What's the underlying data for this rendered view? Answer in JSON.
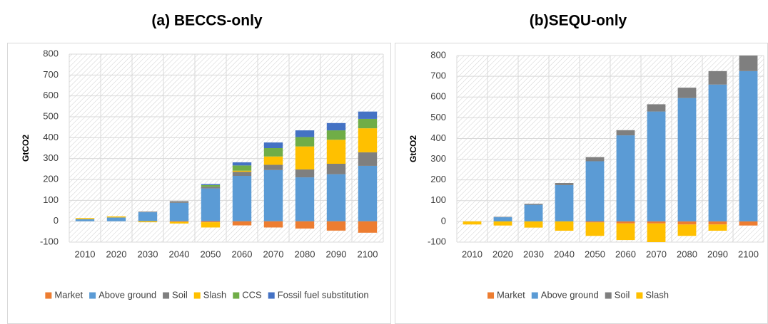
{
  "chart_data": [
    {
      "type": "bar",
      "stacked": true,
      "title": "(a) BECCS-only",
      "y_label": "GtCO2",
      "categories": [
        "2010",
        "2020",
        "2030",
        "2040",
        "2050",
        "2060",
        "2070",
        "2080",
        "2090",
        "2100"
      ],
      "ylim": [
        -100,
        800
      ],
      "yticks": [
        -100,
        0,
        100,
        200,
        300,
        400,
        500,
        600,
        700,
        800
      ],
      "grid": true,
      "legend": "bottom",
      "series": [
        {
          "name": "Market",
          "color": "#ED7D31",
          "values": [
            0,
            0,
            0,
            -3,
            -5,
            -20,
            -30,
            -35,
            -45,
            -55
          ]
        },
        {
          "name": "Above ground",
          "color": "#5B9BD5",
          "values": [
            10,
            18,
            43,
            88,
            157,
            217,
            245,
            210,
            225,
            265
          ]
        },
        {
          "name": "Soil",
          "color": "#7F7F7F",
          "values": [
            0,
            0,
            3,
            8,
            8,
            20,
            25,
            38,
            50,
            65
          ]
        },
        {
          "name": "Slash",
          "color": "#FFC000",
          "values": [
            5,
            5,
            -5,
            -8,
            -25,
            5,
            40,
            110,
            115,
            115
          ]
        },
        {
          "name": "CCS",
          "color": "#70AD47",
          "values": [
            0,
            0,
            0,
            0,
            8,
            25,
            40,
            45,
            45,
            45
          ]
        },
        {
          "name": "Fossil fuel substitution",
          "color": "#4472C4",
          "values": [
            0,
            0,
            0,
            0,
            5,
            15,
            27,
            32,
            35,
            35
          ]
        }
      ]
    },
    {
      "type": "bar",
      "stacked": true,
      "title": "(b)SEQU-only",
      "y_label": "GtCO2",
      "categories": [
        "2010",
        "2020",
        "2030",
        "2040",
        "2050",
        "2060",
        "2070",
        "2080",
        "2090",
        "2100"
      ],
      "ylim": [
        -100,
        800
      ],
      "yticks": [
        -100,
        0,
        100,
        200,
        300,
        400,
        500,
        600,
        700,
        800
      ],
      "grid": true,
      "legend": "bottom",
      "series": [
        {
          "name": "Market",
          "color": "#ED7D31",
          "values": [
            0,
            0,
            0,
            0,
            -5,
            -10,
            -10,
            -15,
            -15,
            -20
          ]
        },
        {
          "name": "Above ground",
          "color": "#5B9BD5",
          "values": [
            0,
            20,
            80,
            175,
            290,
            415,
            530,
            595,
            660,
            725
          ]
        },
        {
          "name": "Soil",
          "color": "#7F7F7F",
          "values": [
            0,
            2,
            5,
            10,
            20,
            25,
            35,
            50,
            65,
            75
          ]
        },
        {
          "name": "Slash",
          "color": "#FFC000",
          "values": [
            -15,
            -20,
            -30,
            -45,
            -65,
            -80,
            -90,
            -55,
            -30,
            0
          ]
        }
      ]
    }
  ]
}
